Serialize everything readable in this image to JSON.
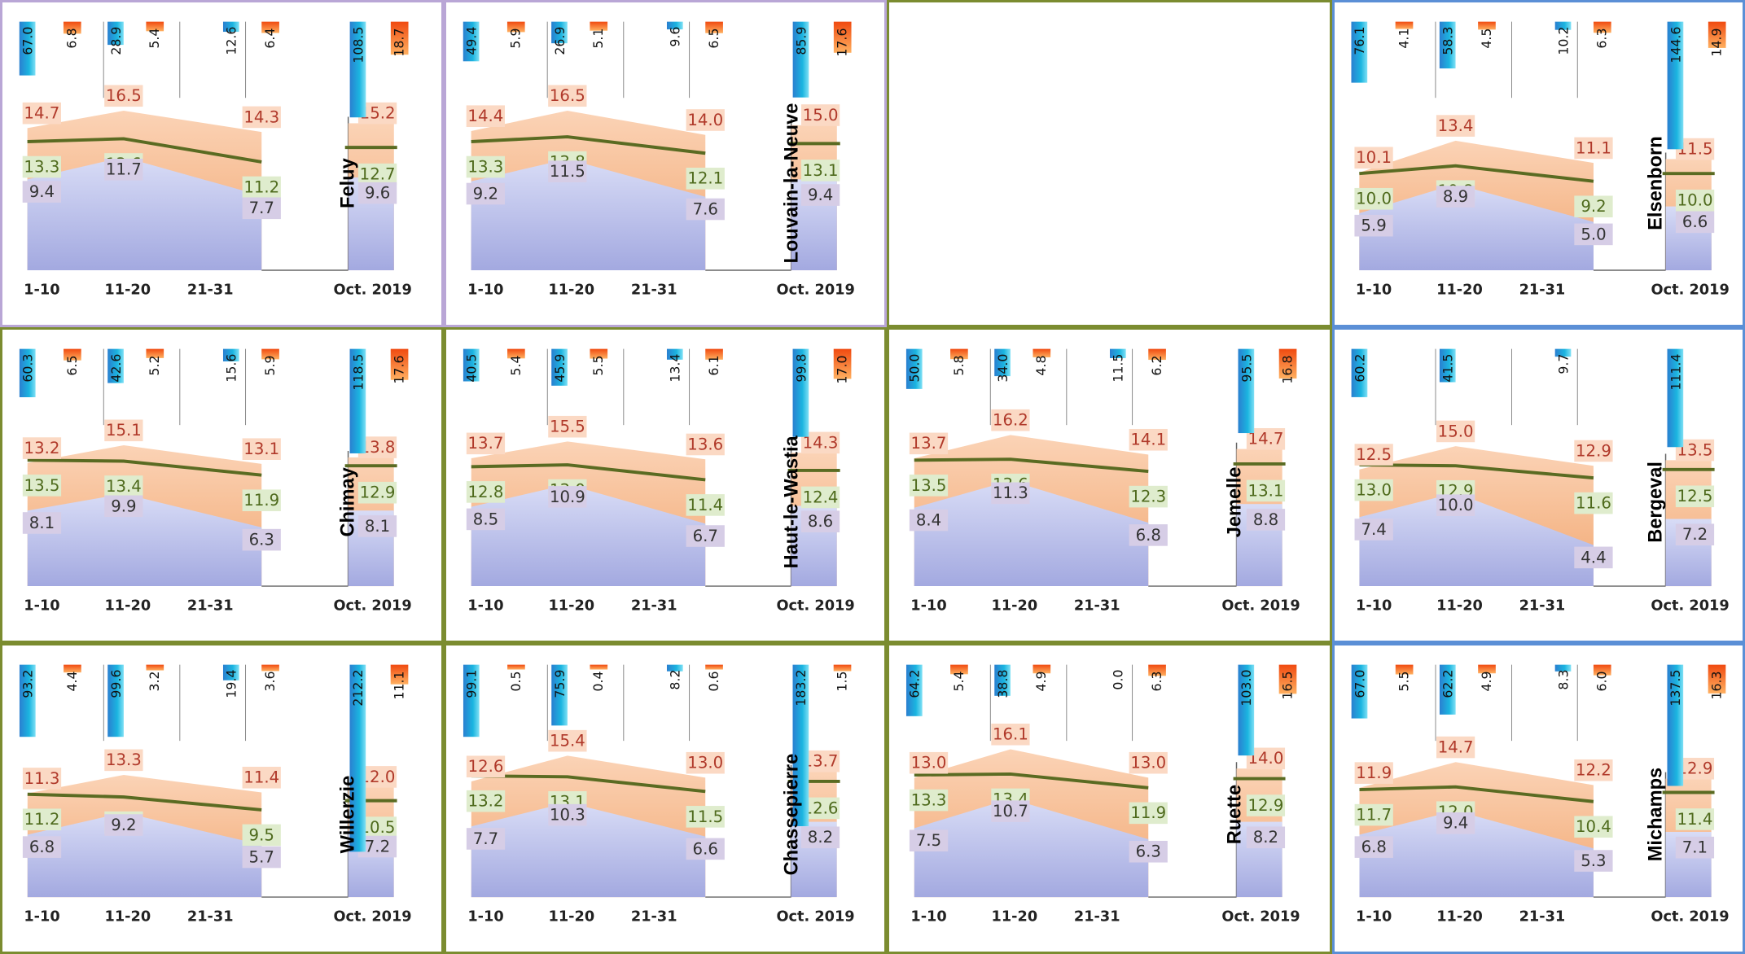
{
  "chart_data": [
    {
      "type": "area",
      "station": "Feluy",
      "categories": [
        "1-10",
        "11-20",
        "21-31"
      ],
      "month_label": "Oct. 2019",
      "series": [
        {
          "values": [
            14.7,
            16.5,
            14.3
          ],
          "month": 15.2
        },
        {
          "values": [
            13.3,
            13.6,
            11.2
          ],
          "month": 12.7
        },
        {
          "values": [
            9.4,
            11.7,
            7.7
          ],
          "month": 9.6
        }
      ],
      "precipitation": [
        67.0,
        28.9,
        12.6
      ],
      "precipitation_month": 108.5,
      "sunshine": [
        6.8,
        5.4,
        6.4
      ],
      "sunshine_month": 18.7
    },
    {
      "type": "area",
      "station": "Louvain-la-Neuve",
      "categories": [
        "1-10",
        "11-20",
        "21-31"
      ],
      "month_label": "Oct. 2019",
      "series": [
        {
          "values": [
            14.4,
            16.5,
            14.0
          ],
          "month": 15.0
        },
        {
          "values": [
            13.3,
            13.8,
            12.1
          ],
          "month": 13.1
        },
        {
          "values": [
            9.2,
            11.5,
            7.6
          ],
          "month": 9.4
        }
      ],
      "precipitation": [
        49.4,
        26.9,
        9.6
      ],
      "precipitation_month": 85.9,
      "sunshine": [
        5.9,
        5.1,
        6.5
      ],
      "sunshine_month": 17.6
    },
    null,
    {
      "type": "area",
      "station": "Elsenborn",
      "categories": [
        "1-10",
        "11-20",
        "21-31"
      ],
      "month_label": "Oct. 2019",
      "series": [
        {
          "values": [
            10.1,
            13.4,
            11.1
          ],
          "month": 11.5
        },
        {
          "values": [
            10.0,
            10.8,
            9.2
          ],
          "month": 10.0
        },
        {
          "values": [
            5.9,
            8.9,
            5.0
          ],
          "month": 6.6
        }
      ],
      "precipitation": [
        76.1,
        58.3,
        10.2
      ],
      "precipitation_month": 144.6,
      "sunshine": [
        4.1,
        4.5,
        6.3
      ],
      "sunshine_month": 14.9
    },
    {
      "type": "area",
      "station": "Chimay",
      "categories": [
        "1-10",
        "11-20",
        "21-31"
      ],
      "month_label": "Oct. 2019",
      "series": [
        {
          "values": [
            13.2,
            15.1,
            13.1
          ],
          "month": 13.8
        },
        {
          "values": [
            13.5,
            13.4,
            11.9
          ],
          "month": 12.9
        },
        {
          "values": [
            8.1,
            9.9,
            6.3
          ],
          "month": 8.1
        }
      ],
      "precipitation": [
        60.3,
        42.6,
        15.6
      ],
      "precipitation_month": 118.5,
      "sunshine": [
        6.5,
        5.2,
        5.9
      ],
      "sunshine_month": 17.6
    },
    {
      "type": "area",
      "station": "Haut-le-Wastia",
      "categories": [
        "1-10",
        "11-20",
        "21-31"
      ],
      "month_label": "Oct. 2019",
      "series": [
        {
          "values": [
            13.7,
            15.5,
            13.6
          ],
          "month": 14.3
        },
        {
          "values": [
            12.8,
            13.0,
            11.4
          ],
          "month": 12.4
        },
        {
          "values": [
            8.5,
            10.9,
            6.7
          ],
          "month": 8.6
        }
      ],
      "precipitation": [
        40.5,
        45.9,
        13.4
      ],
      "precipitation_month": 99.8,
      "sunshine": [
        5.4,
        5.5,
        6.1
      ],
      "sunshine_month": 17.0
    },
    {
      "type": "area",
      "station": "Jemelle",
      "categories": [
        "1-10",
        "11-20",
        "21-31"
      ],
      "month_label": "Oct. 2019",
      "series": [
        {
          "values": [
            13.7,
            16.2,
            14.1
          ],
          "month": 14.7
        },
        {
          "values": [
            13.5,
            13.6,
            12.3
          ],
          "month": 13.1
        },
        {
          "values": [
            8.4,
            11.3,
            6.8
          ],
          "month": 8.8
        }
      ],
      "precipitation": [
        50.0,
        34.0,
        11.5
      ],
      "precipitation_month": 95.5,
      "sunshine": [
        5.8,
        4.8,
        6.2
      ],
      "sunshine_month": 16.8
    },
    {
      "type": "area",
      "station": "Bergeval",
      "categories": [
        "1-10",
        "11-20",
        "21-31"
      ],
      "month_label": "Oct. 2019",
      "series": [
        {
          "values": [
            12.5,
            15.0,
            12.9
          ],
          "month": 13.5
        },
        {
          "values": [
            13.0,
            12.9,
            11.6
          ],
          "month": 12.5
        },
        {
          "values": [
            7.4,
            10.0,
            4.4
          ],
          "month": 7.2
        }
      ],
      "precipitation": [
        60.2,
        41.5,
        9.7
      ],
      "precipitation_month": 111.4,
      "sunshine": [
        null,
        null,
        null
      ],
      "sunshine_month": null
    },
    {
      "type": "area",
      "station": "Willerzie",
      "categories": [
        "1-10",
        "11-20",
        "21-31"
      ],
      "month_label": "Oct. 2019",
      "series": [
        {
          "values": [
            11.3,
            13.3,
            11.4
          ],
          "month": 12.0
        },
        {
          "values": [
            11.2,
            10.9,
            9.5
          ],
          "month": 10.5
        },
        {
          "values": [
            6.8,
            9.2,
            5.7
          ],
          "month": 7.2
        }
      ],
      "precipitation": [
        93.2,
        99.6,
        19.4
      ],
      "precipitation_month": 212.2,
      "sunshine": [
        4.4,
        3.2,
        3.6
      ],
      "sunshine_month": 11.1
    },
    {
      "type": "area",
      "station": "Chassepierre",
      "categories": [
        "1-10",
        "11-20",
        "21-31"
      ],
      "month_label": "Oct. 2019",
      "series": [
        {
          "values": [
            12.6,
            15.4,
            13.0
          ],
          "month": 13.7
        },
        {
          "values": [
            13.2,
            13.1,
            11.5
          ],
          "month": 12.6
        },
        {
          "values": [
            7.7,
            10.3,
            6.6
          ],
          "month": 8.2
        }
      ],
      "precipitation": [
        99.1,
        75.9,
        8.2
      ],
      "precipitation_month": 183.2,
      "sunshine": [
        0.5,
        0.4,
        0.6
      ],
      "sunshine_month": 1.5
    },
    {
      "type": "area",
      "station": "Ruette",
      "categories": [
        "1-10",
        "11-20",
        "21-31"
      ],
      "month_label": "Oct. 2019",
      "series": [
        {
          "values": [
            13.0,
            16.1,
            13.0
          ],
          "month": 14.0
        },
        {
          "values": [
            13.3,
            13.4,
            11.9
          ],
          "month": 12.9
        },
        {
          "values": [
            7.5,
            10.7,
            6.3
          ],
          "month": 8.2
        }
      ],
      "precipitation": [
        64.2,
        38.8,
        0.0
      ],
      "precipitation_month": 103.0,
      "sunshine": [
        5.4,
        4.9,
        6.3
      ],
      "sunshine_month": 16.5
    },
    {
      "type": "area",
      "station": "Michamps",
      "categories": [
        "1-10",
        "11-20",
        "21-31"
      ],
      "month_label": "Oct. 2019",
      "series": [
        {
          "values": [
            11.9,
            14.7,
            12.2
          ],
          "month": 12.9
        },
        {
          "values": [
            11.7,
            12.0,
            10.4
          ],
          "month": 11.4
        },
        {
          "values": [
            6.8,
            9.4,
            5.3
          ],
          "month": 7.1
        }
      ],
      "precipitation": [
        67.0,
        62.2,
        8.3
      ],
      "precipitation_month": 137.5,
      "sunshine": [
        5.5,
        4.9,
        6.0
      ],
      "sunshine_month": 16.3
    }
  ],
  "colors": {
    "max_fill": "#f2a872",
    "min_fill": "#b9bfec",
    "mean_line": "#5a6b22",
    "border_purple": "#b9a6d6",
    "border_green": "#7b8c30",
    "border_blue": "#5b8fd6",
    "precip": "#1ba3dc",
    "sun": "#ee6a10"
  }
}
